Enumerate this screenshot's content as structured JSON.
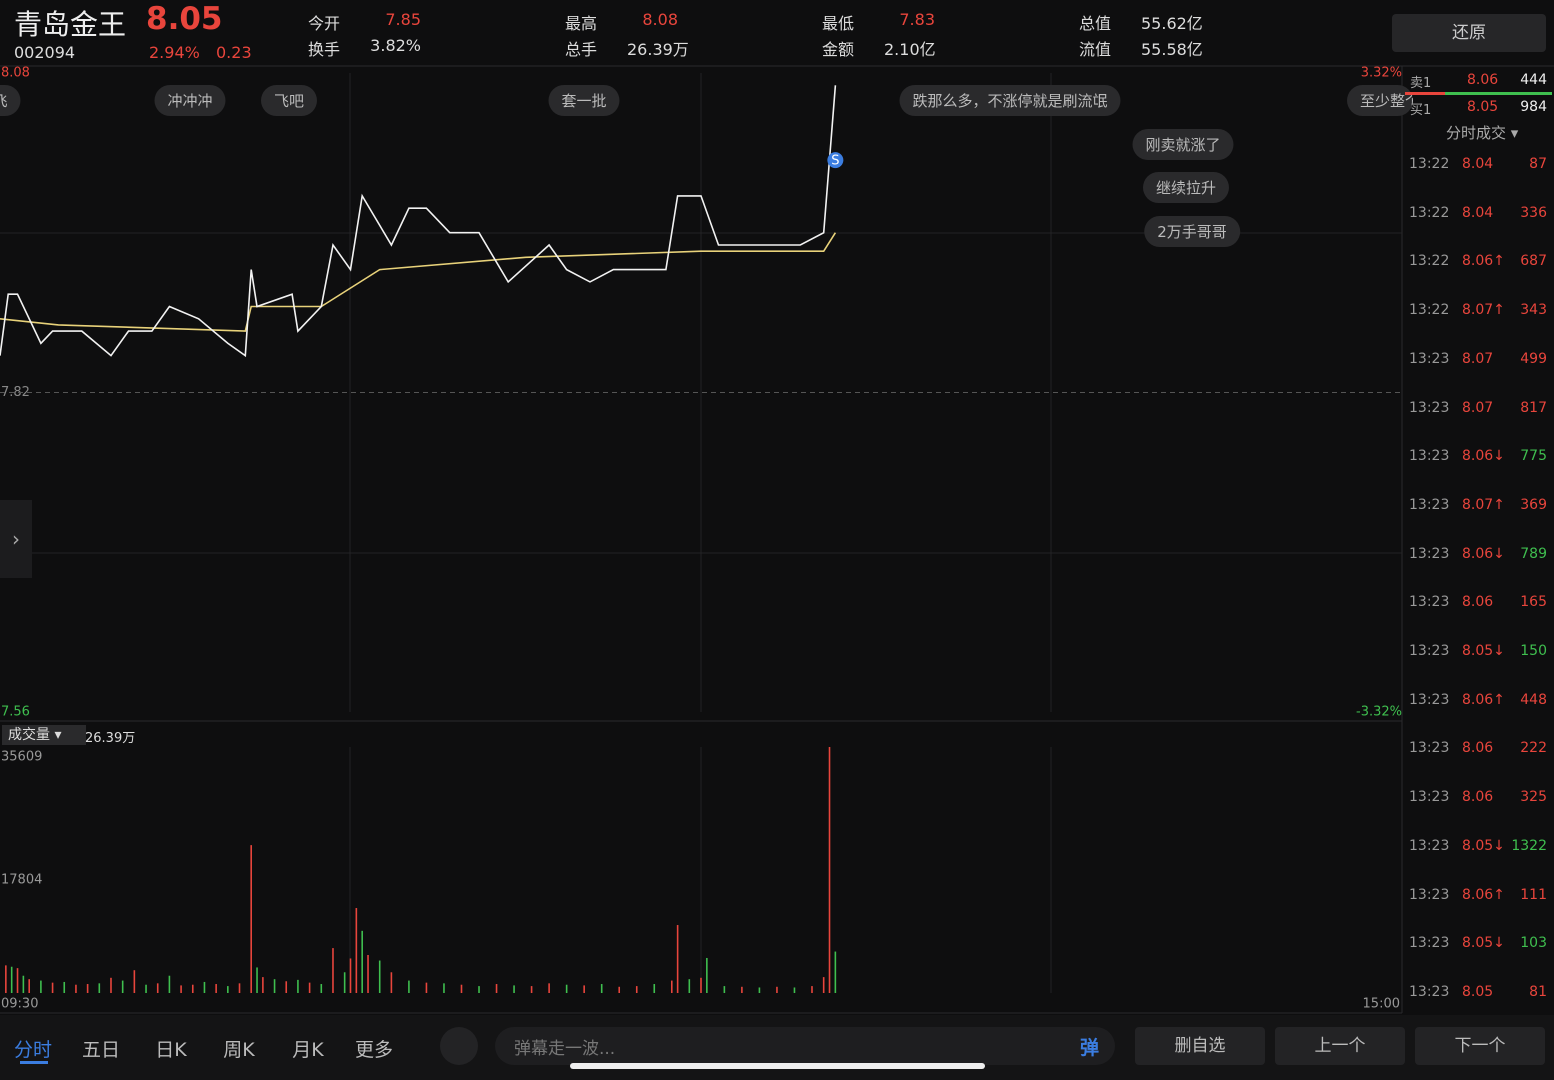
{
  "header": {
    "name": "青岛金王",
    "price": "8.05",
    "code": "002094",
    "change_pct": "2.94%",
    "change": "0.23",
    "stats": [
      {
        "label": "今开",
        "value": "7.85",
        "color": "#e8453c"
      },
      {
        "label": "换手",
        "value": "3.82%",
        "color": "#dddddd"
      },
      {
        "label": "最高",
        "value": "8.08",
        "color": "#e8453c"
      },
      {
        "label": "总手",
        "value": "26.39万",
        "color": "#dddddd"
      },
      {
        "label": "最低",
        "value": "7.83",
        "color": "#e8453c"
      },
      {
        "label": "金额",
        "value": "2.10亿",
        "color": "#dddddd"
      },
      {
        "label": "总值",
        "value": "55.62亿",
        "color": "#dddddd"
      },
      {
        "label": "流值",
        "value": "55.58亿",
        "color": "#dddddd"
      }
    ]
  },
  "restore_button": "还原",
  "price_chart": {
    "ylim": [
      7.56,
      8.08
    ],
    "yticks": [
      7.56,
      7.82,
      8.08
    ],
    "pct_ticks": [
      {
        "value": 7.56,
        "label": "-3.32%"
      },
      {
        "value": 8.08,
        "label": "3.32%"
      }
    ],
    "xlim": [
      0,
      240
    ],
    "price_line": {
      "color": "#f2f2f2",
      "x": [
        0,
        1.4,
        3,
        7,
        9,
        14,
        19,
        22,
        26,
        29,
        34,
        39,
        42,
        43,
        44,
        50,
        51,
        55,
        57,
        60,
        62,
        67,
        70,
        73,
        77,
        82,
        87,
        94,
        97,
        101,
        105,
        110,
        114,
        116,
        120,
        123,
        127,
        130,
        137,
        141,
        143
      ],
      "values": [
        7.85,
        7.9,
        7.9,
        7.86,
        7.87,
        7.87,
        7.85,
        7.87,
        7.87,
        7.89,
        7.88,
        7.86,
        7.85,
        7.92,
        7.89,
        7.9,
        7.87,
        7.89,
        7.94,
        7.92,
        7.98,
        7.94,
        7.97,
        7.97,
        7.95,
        7.95,
        7.91,
        7.94,
        7.92,
        7.91,
        7.92,
        7.92,
        7.92,
        7.98,
        7.98,
        7.94,
        7.94,
        7.94,
        7.94,
        7.95,
        8.07
      ]
    },
    "avg_line": {
      "color": "#e8d27a",
      "x": [
        0,
        10,
        42,
        43,
        55,
        65,
        90,
        120,
        141,
        143
      ],
      "values": [
        7.88,
        7.875,
        7.87,
        7.89,
        7.89,
        7.92,
        7.93,
        7.935,
        7.935,
        7.95
      ]
    },
    "marker": {
      "label": "S",
      "x": 143,
      "value": 8.04
    }
  },
  "danmaku": [
    "飞",
    "冲冲冲",
    "飞吧",
    "套一批",
    "跌那么多，不涨停就是刷流氓",
    "至少整个",
    "刚卖就涨了",
    "继续拉升",
    "2万手哥哥"
  ],
  "volume_chart": {
    "label": "成交量",
    "total": "26.39万",
    "ylim": [
      0,
      35609
    ],
    "yticks": [
      17804,
      35609
    ],
    "xlim": [
      0,
      240
    ],
    "xticks": [
      {
        "value": 0,
        "label": "09:30"
      },
      {
        "value": 240,
        "label": "15:00"
      }
    ],
    "x": [
      1,
      2,
      3,
      4,
      5,
      7,
      9,
      11,
      13,
      15,
      17,
      19,
      21,
      23,
      25,
      27,
      29,
      31,
      33,
      35,
      37,
      39,
      41,
      43,
      44,
      45,
      47,
      49,
      51,
      53,
      55,
      57,
      59,
      60,
      61,
      62,
      63,
      65,
      67,
      70,
      73,
      76,
      79,
      82,
      85,
      88,
      91,
      94,
      97,
      100,
      103,
      106,
      109,
      112,
      115,
      116,
      118,
      120,
      121,
      124,
      127,
      130,
      133,
      136,
      139,
      141,
      142,
      143
    ],
    "values": [
      4000,
      3800,
      3600,
      2500,
      2000,
      1800,
      1500,
      1600,
      1200,
      1300,
      1400,
      2200,
      1800,
      3300,
      1200,
      1400,
      2500,
      1100,
      1200,
      1600,
      1300,
      1000,
      1400,
      21400,
      3700,
      2300,
      2000,
      1700,
      1900,
      1500,
      1300,
      6500,
      3000,
      5000,
      12300,
      9000,
      5500,
      4700,
      3000,
      1800,
      1500,
      1400,
      1200,
      1000,
      1300,
      1100,
      1000,
      1400,
      1200,
      1100,
      1300,
      900,
      1000,
      1300,
      1800,
      9840,
      2000,
      2200,
      5070,
      1000,
      900,
      800,
      900,
      800,
      1000,
      2300,
      35609,
      6000
    ],
    "colors": [
      "#e8453c",
      "#3fbf4f",
      "#e8453c",
      "#3fbf4f",
      "#e8453c",
      "#3fbf4f",
      "#e8453c",
      "#3fbf4f",
      "#e8453c",
      "#e8453c",
      "#3fbf4f",
      "#e8453c",
      "#3fbf4f",
      "#e8453c",
      "#3fbf4f",
      "#e8453c",
      "#3fbf4f",
      "#e8453c",
      "#e8453c",
      "#3fbf4f",
      "#e8453c",
      "#3fbf4f",
      "#e8453c",
      "#e8453c",
      "#3fbf4f",
      "#e8453c",
      "#3fbf4f",
      "#e8453c",
      "#3fbf4f",
      "#e8453c",
      "#3fbf4f",
      "#e8453c",
      "#3fbf4f",
      "#e8453c",
      "#e8453c",
      "#3fbf4f",
      "#e8453c",
      "#3fbf4f",
      "#e8453c",
      "#3fbf4f",
      "#e8453c",
      "#3fbf4f",
      "#e8453c",
      "#3fbf4f",
      "#e8453c",
      "#3fbf4f",
      "#e8453c",
      "#e8453c",
      "#3fbf4f",
      "#e8453c",
      "#3fbf4f",
      "#e8453c",
      "#e8453c",
      "#3fbf4f",
      "#e8453c",
      "#e8453c",
      "#3fbf4f",
      "#e8453c",
      "#3fbf4f",
      "#3fbf4f",
      "#e8453c",
      "#3fbf4f",
      "#e8453c",
      "#3fbf4f",
      "#e8453c",
      "#e8453c",
      "#e8453c",
      "#3fbf4f"
    ]
  },
  "order_book": [
    {
      "side": "卖1",
      "price": "8.06",
      "volume": "444"
    },
    {
      "side": "买1",
      "price": "8.05",
      "volume": "984"
    }
  ],
  "trades_title": "分时成交",
  "trades": [
    [
      "13:22",
      "8.04",
      "87",
      "#e8453c"
    ],
    [
      "13:22",
      "8.04",
      "336",
      "#e8453c"
    ],
    [
      "13:22",
      "8.06↑",
      "687",
      "#e8453c"
    ],
    [
      "13:22",
      "8.07↑",
      "343",
      "#e8453c"
    ],
    [
      "13:23",
      "8.07",
      "499",
      "#e8453c"
    ],
    [
      "13:23",
      "8.07",
      "817",
      "#e8453c"
    ],
    [
      "13:23",
      "8.06↓",
      "775",
      "#3fbf4f"
    ],
    [
      "13:23",
      "8.07↑",
      "369",
      "#e8453c"
    ],
    [
      "13:23",
      "8.06↓",
      "789",
      "#3fbf4f"
    ],
    [
      "13:23",
      "8.06",
      "165",
      "#e8453c"
    ],
    [
      "13:23",
      "8.05↓",
      "150",
      "#3fbf4f"
    ],
    [
      "13:23",
      "8.06↑",
      "448",
      "#e8453c"
    ],
    [
      "13:23",
      "8.06",
      "222",
      "#e8453c"
    ],
    [
      "13:23",
      "8.06",
      "325",
      "#e8453c"
    ],
    [
      "13:23",
      "8.05↓",
      "1322",
      "#3fbf4f"
    ],
    [
      "13:23",
      "8.06↑",
      "111",
      "#e8453c"
    ],
    [
      "13:23",
      "8.05↓",
      "103",
      "#3fbf4f"
    ],
    [
      "13:23",
      "8.05",
      "81",
      "#e8453c"
    ]
  ],
  "tabs": [
    "分时",
    "五日",
    "日K",
    "周K",
    "月K",
    "更多"
  ],
  "input_placeholder": "弹幕走一波...",
  "danmaku_toggle": "弹",
  "buttons": [
    "删自选",
    "上一个",
    "下一个"
  ]
}
